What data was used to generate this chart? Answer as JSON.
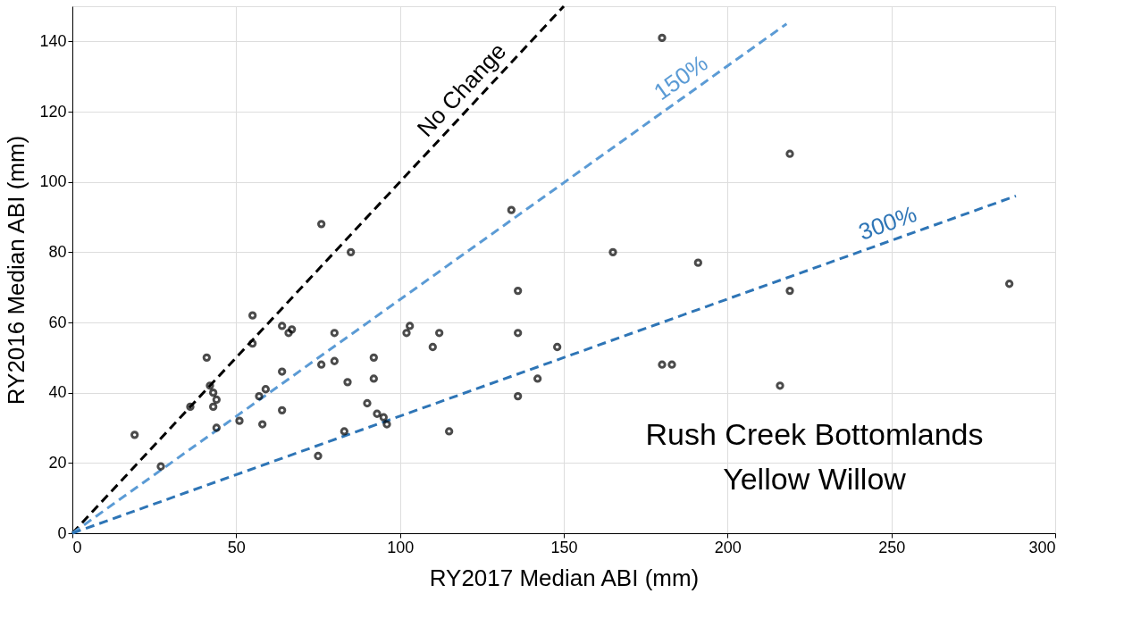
{
  "chart_data": {
    "type": "scatter",
    "xlabel": "RY2017 Median ABI (mm)",
    "ylabel": "RY2016 Median ABI (mm)",
    "xlim": [
      0,
      300
    ],
    "xticks": [
      0,
      50,
      100,
      150,
      200,
      250,
      300
    ],
    "ylim": [
      0,
      150
    ],
    "yticks": [
      0,
      20,
      40,
      60,
      80,
      100,
      120,
      140
    ],
    "grid": true,
    "annotations": [
      "Rush Creek Bottomlands",
      "Yellow Willow"
    ],
    "series": [
      {
        "color": "#000000",
        "marker": "circle",
        "x": [
          19,
          27,
          36,
          41,
          42,
          43,
          44,
          43,
          44,
          51,
          55,
          55,
          57,
          59,
          58,
          64,
          64,
          64,
          66,
          67,
          76,
          76,
          75,
          80,
          80,
          84,
          83,
          85,
          90,
          92,
          92,
          93,
          95,
          96,
          102,
          103,
          110,
          112,
          115,
          134,
          136,
          136,
          136,
          142,
          148,
          165,
          180,
          180,
          183,
          191,
          216,
          219,
          219,
          286
        ],
        "values": [
          28,
          19,
          36,
          50,
          42,
          36,
          38,
          40,
          30,
          32,
          62,
          54,
          39,
          41,
          31,
          59,
          46,
          35,
          57,
          58,
          88,
          48,
          22,
          57,
          49,
          43,
          29,
          80,
          37,
          50,
          44,
          34,
          33,
          31,
          57,
          59,
          53,
          57,
          29,
          92,
          69,
          57,
          39,
          44,
          53,
          80,
          141,
          48,
          48,
          77,
          42,
          108,
          69,
          71
        ]
      },
      {
        "type": "line",
        "name": "No Change",
        "color": "#000000",
        "line_style": "dashed",
        "x": [
          0,
          150
        ],
        "values": [
          0,
          150
        ]
      },
      {
        "type": "line",
        "name": "150%",
        "color": "#5b9bd5",
        "line_style": "dashed",
        "x": [
          0,
          218
        ],
        "values": [
          0,
          145
        ]
      },
      {
        "type": "line",
        "name": "300%",
        "color": "#2e75b6",
        "line_style": "dashed",
        "x": [
          0,
          288
        ],
        "values": [
          0,
          96
        ]
      }
    ]
  }
}
